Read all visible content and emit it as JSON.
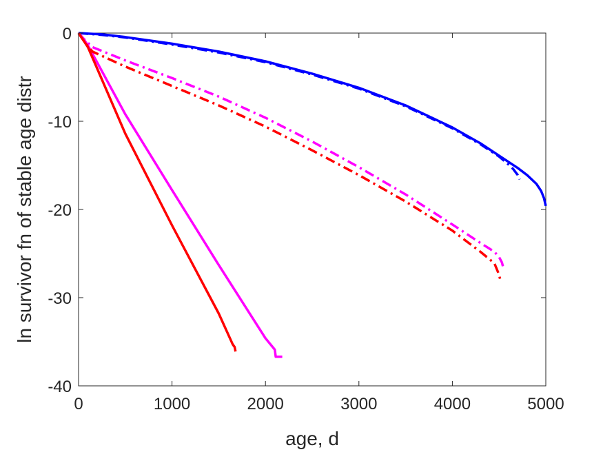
{
  "chart_data": {
    "type": "line",
    "title": "",
    "xlabel": "age, d",
    "ylabel": "ln survivor fn of stable age distr",
    "xlim": [
      0,
      5000
    ],
    "ylim": [
      -40,
      0
    ],
    "xticks": [
      0,
      1000,
      2000,
      3000,
      4000,
      5000
    ],
    "yticks": [
      0,
      -10,
      -20,
      -30,
      -40
    ],
    "grid": false,
    "legend": "none",
    "series": [
      {
        "color": "#0000ff",
        "style": "solid",
        "x": [
          0,
          250,
          500,
          1000,
          1500,
          2000,
          2500,
          3000,
          3500,
          4000,
          4300,
          4500,
          4700,
          4800,
          4900,
          4950,
          4980,
          5000
        ],
        "y": [
          0,
          -0.15,
          -0.45,
          -1.2,
          -2.1,
          -3.2,
          -4.6,
          -6.2,
          -8.2,
          -10.7,
          -12.5,
          -13.9,
          -15.3,
          -16.1,
          -17.1,
          -17.9,
          -18.7,
          -19.6
        ]
      },
      {
        "color": "#0000ff",
        "style": "dashdot",
        "x": [
          0,
          250,
          500,
          1000,
          1500,
          2000,
          2500,
          3000,
          3500,
          4000,
          4300,
          4500,
          4600,
          4650,
          4700,
          4720
        ],
        "y": [
          0,
          -0.2,
          -0.5,
          -1.3,
          -2.2,
          -3.3,
          -4.7,
          -6.3,
          -8.3,
          -10.8,
          -12.6,
          -14.0,
          -14.9,
          -15.4,
          -16.1,
          -16.6
        ]
      },
      {
        "color": "#ff00ff",
        "style": "solid",
        "x": [
          0,
          50,
          100,
          500,
          1000,
          1500,
          2000,
          2100,
          2110,
          2140,
          2180
        ],
        "y": [
          0,
          -0.6,
          -1.4,
          -9.2,
          -17.8,
          -26.3,
          -34.6,
          -35.9,
          -36.7,
          -36.7,
          -36.7
        ]
      },
      {
        "color": "#ff00ff",
        "style": "dashdot",
        "x": [
          0,
          50,
          100,
          150,
          500,
          1000,
          1500,
          2000,
          2500,
          3000,
          3500,
          4000,
          4300,
          4450,
          4500,
          4530,
          4545
        ],
        "y": [
          0,
          -0.6,
          -1.1,
          -1.6,
          -3.1,
          -5.1,
          -7.2,
          -9.6,
          -12.3,
          -15.2,
          -18.3,
          -21.7,
          -23.8,
          -24.8,
          -25.4,
          -26.0,
          -26.6
        ]
      },
      {
        "color": "#ff0000",
        "style": "solid",
        "x": [
          0,
          50,
          100,
          500,
          1000,
          1500,
          1650,
          1670,
          1680
        ],
        "y": [
          0,
          -0.8,
          -1.6,
          -11.4,
          -21.8,
          -31.8,
          -35.3,
          -35.6,
          -36.1
        ]
      },
      {
        "color": "#ff0000",
        "style": "dashdot",
        "x": [
          0,
          50,
          100,
          150,
          500,
          1000,
          1500,
          2000,
          2500,
          3000,
          3500,
          4000,
          4300,
          4450,
          4500,
          4520
        ],
        "y": [
          0,
          -0.8,
          -1.5,
          -2.1,
          -3.8,
          -6.0,
          -8.2,
          -10.6,
          -13.3,
          -16.1,
          -19.1,
          -22.4,
          -24.8,
          -26.1,
          -27.4,
          -28.3
        ]
      }
    ]
  }
}
